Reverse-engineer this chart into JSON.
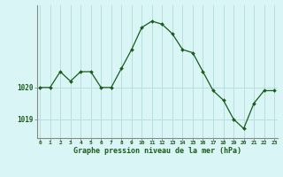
{
  "x": [
    0,
    1,
    2,
    3,
    4,
    5,
    6,
    7,
    8,
    9,
    10,
    11,
    12,
    13,
    14,
    15,
    16,
    17,
    18,
    19,
    20,
    21,
    22,
    23
  ],
  "y": [
    1020.0,
    1020.0,
    1020.5,
    1020.2,
    1020.5,
    1020.5,
    1020.0,
    1020.0,
    1020.6,
    1021.2,
    1021.9,
    1022.1,
    1022.0,
    1021.7,
    1021.2,
    1021.1,
    1020.5,
    1019.9,
    1019.6,
    1019.0,
    1018.7,
    1019.5,
    1019.9,
    1019.9
  ],
  "line_color": "#1a5c1a",
  "marker_color": "#1a5c1a",
  "bg_color": "#d9f5f5",
  "grid_color": "#b8dede",
  "xlabel": "Graphe pression niveau de la mer (hPa)",
  "xlabel_color": "#1a5c1a",
  "tick_color": "#1a5c1a",
  "ylim_min": 1018.4,
  "ylim_max": 1022.6,
  "ytick_labels": [
    "1019",
    "1020"
  ],
  "ytick_values": [
    1019.0,
    1020.0
  ],
  "spine_color": "#888888"
}
